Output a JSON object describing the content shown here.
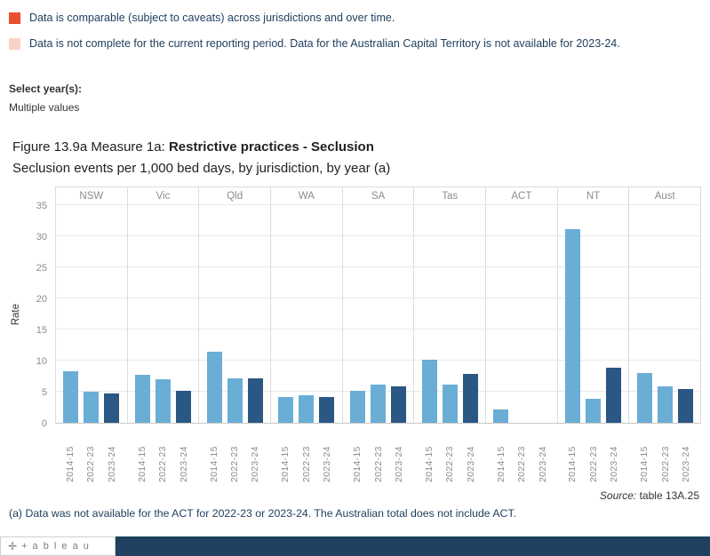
{
  "legend": {
    "items": [
      {
        "label": "Data is comparable (subject to caveats) across jurisdictions and over time.",
        "color": "#e8502e"
      },
      {
        "label": "Data is not complete for the current reporting period. Data for the Australian Capital Territory is not available for 2023-24.",
        "color": "#fad3c8"
      }
    ]
  },
  "filter": {
    "label": "Select year(s):",
    "value": "Multiple values"
  },
  "title": {
    "prefix": "Figure 13.9a Measure 1a: ",
    "bold": "Restrictive practices - Seclusion",
    "subtitle": "Seclusion events per 1,000 bed days, by jurisdiction, by year (a)"
  },
  "chart_data": {
    "type": "bar",
    "title": "Figure 13.9a Measure 1a: Restrictive practices - Seclusion",
    "subtitle": "Seclusion events per 1,000 bed days, by jurisdiction, by year (a)",
    "ylabel": "Rate",
    "xlabel": "",
    "ylim": [
      0,
      35
    ],
    "yticks": [
      0,
      5,
      10,
      15,
      20,
      25,
      30,
      35
    ],
    "grid": true,
    "years": [
      "2014-15",
      "2022-23",
      "2023-24"
    ],
    "year_colors": [
      "#6aaed6",
      "#6aaed6",
      "#2a5783"
    ],
    "jurisdictions": [
      "NSW",
      "Vic",
      "Qld",
      "WA",
      "SA",
      "Tas",
      "ACT",
      "NT",
      "Aust"
    ],
    "series": [
      {
        "jurisdiction": "NSW",
        "values": [
          8.3,
          5.0,
          4.7
        ]
      },
      {
        "jurisdiction": "Vic",
        "values": [
          7.7,
          7.0,
          5.2
        ]
      },
      {
        "jurisdiction": "Qld",
        "values": [
          11.5,
          7.2,
          7.1
        ]
      },
      {
        "jurisdiction": "WA",
        "values": [
          4.2,
          4.4,
          4.1
        ]
      },
      {
        "jurisdiction": "SA",
        "values": [
          5.1,
          6.2,
          5.8
        ]
      },
      {
        "jurisdiction": "Tas",
        "values": [
          10.2,
          6.2,
          7.9
        ]
      },
      {
        "jurisdiction": "ACT",
        "values": [
          2.2,
          null,
          null
        ]
      },
      {
        "jurisdiction": "NT",
        "values": [
          31.2,
          3.9,
          8.9
        ]
      },
      {
        "jurisdiction": "Aust",
        "values": [
          8.0,
          5.9,
          5.5
        ]
      }
    ]
  },
  "source": {
    "prefix": "Source:",
    "text": " table 13A.25"
  },
  "footnote": "(a) Data was not available for the ACT for 2022-23 or 2023-24. The Australian total does not include ACT.",
  "footer": {
    "logo_mark": "✛",
    "logo_text": "+ a b l e a u"
  }
}
